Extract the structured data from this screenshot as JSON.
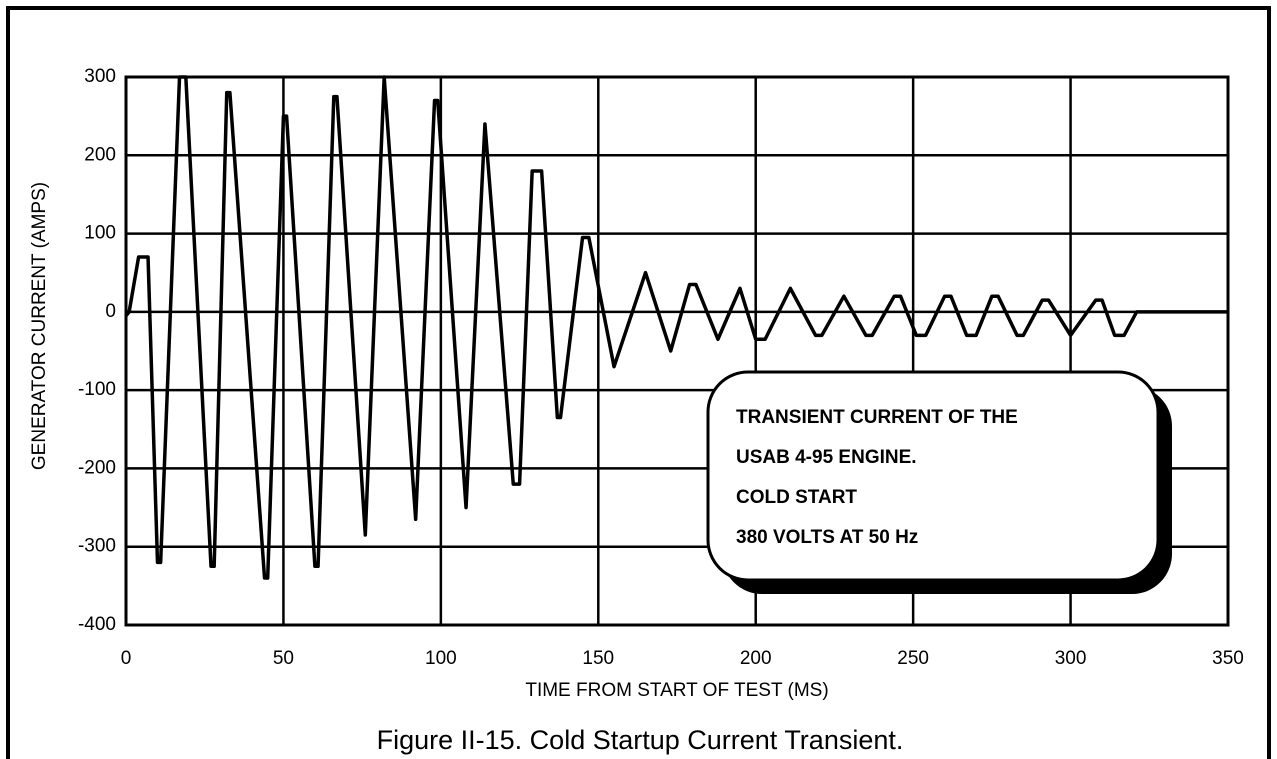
{
  "chart_data": {
    "type": "line",
    "title": "Figure II-15. Cold Startup Current Transient.",
    "xlabel": "TIME FROM START OF TEST (MS)",
    "ylabel": "GENERATOR CURRENT (AMPS)",
    "annotation": [
      "TRANSIENT CURRENT OF THE",
      "USAB 4-95 ENGINE.",
      "COLD START",
      "380 VOLTS AT 50 Hz"
    ],
    "color": "#000000",
    "grid": true,
    "xlim": [
      0,
      350
    ],
    "xticks": [
      0,
      50,
      100,
      150,
      200,
      250,
      300,
      350
    ],
    "ylim": [
      -400,
      300
    ],
    "yticks": [
      -400,
      -300,
      -200,
      -100,
      0,
      100,
      200,
      300
    ],
    "x": [
      0,
      1,
      4,
      7,
      10,
      11,
      17,
      19,
      27,
      28,
      32,
      33,
      44,
      45,
      50,
      51,
      60,
      61,
      66,
      67,
      76,
      82,
      92,
      98,
      99,
      108,
      114,
      123,
      125,
      129,
      132,
      137,
      138,
      145,
      147,
      155,
      165,
      173,
      179,
      181,
      188,
      195,
      200,
      203,
      211,
      219,
      221,
      228,
      235,
      237,
      244,
      246,
      251,
      254,
      260,
      262,
      267,
      270,
      275,
      277,
      283,
      285,
      291,
      293,
      300,
      308,
      310,
      314,
      317,
      321,
      350
    ],
    "values": [
      -5,
      0,
      70,
      70,
      -320,
      -320,
      300,
      300,
      -325,
      -325,
      280,
      280,
      -340,
      -340,
      250,
      250,
      -325,
      -325,
      275,
      275,
      -285,
      300,
      -265,
      270,
      270,
      -250,
      240,
      -220,
      -220,
      180,
      180,
      -135,
      -135,
      95,
      95,
      -70,
      50,
      -50,
      35,
      35,
      -35,
      30,
      -35,
      -35,
      30,
      -30,
      -30,
      20,
      -30,
      -30,
      20,
      20,
      -30,
      -30,
      20,
      20,
      -30,
      -30,
      20,
      20,
      -30,
      -30,
      15,
      15,
      -30,
      15,
      15,
      -30,
      -30,
      0,
      0
    ]
  }
}
